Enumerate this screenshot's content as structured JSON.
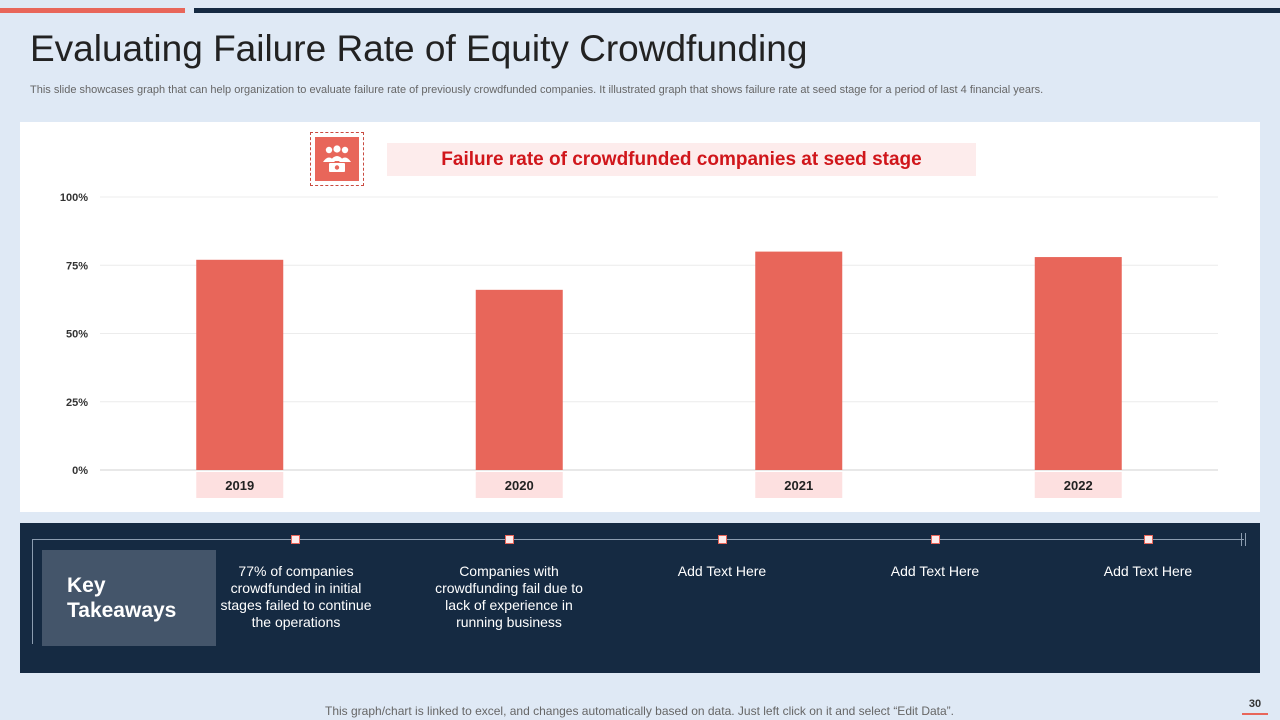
{
  "slide": {
    "title": "Evaluating Failure Rate of Equity Crowdfunding",
    "subtitle": "This slide showcases graph that can help organization to evaluate failure rate of previously crowdfunded companies. It illustrated graph that shows failure rate at seed stage for a period of last 4 financial years.",
    "footer_note": "This graph/chart is linked to excel,  and changes automatically based on data. Just left click on it and select “Edit Data”.",
    "page_number": "30"
  },
  "colors": {
    "accent": "#e8665a",
    "navy": "#152a42",
    "title_red": "#d0161b",
    "label_bg": "#fde0e0",
    "background": "#dfe9f5"
  },
  "chart_icon": "crowd-people-icon",
  "chart_data": {
    "type": "bar",
    "title": "Failure rate of crowdfunded companies at seed stage",
    "categories": [
      "2019",
      "2020",
      "2021",
      "2022"
    ],
    "values": [
      77,
      66,
      80,
      78
    ],
    "ylim": [
      0,
      100
    ],
    "yticks": [
      0,
      25,
      50,
      75,
      100
    ],
    "ytick_labels": [
      "0%",
      "25%",
      "50%",
      "75%",
      "100%"
    ],
    "xlabel": "",
    "ylabel": "",
    "grid": true
  },
  "takeaways": {
    "heading": "Key Takeaways",
    "items": [
      "77% of companies crowdfunded in initial stages  failed to continue the operations",
      "Companies with crowdfunding fail due to lack of experience in running business",
      "Add Text Here",
      "Add Text Here",
      "Add Text Here"
    ]
  }
}
